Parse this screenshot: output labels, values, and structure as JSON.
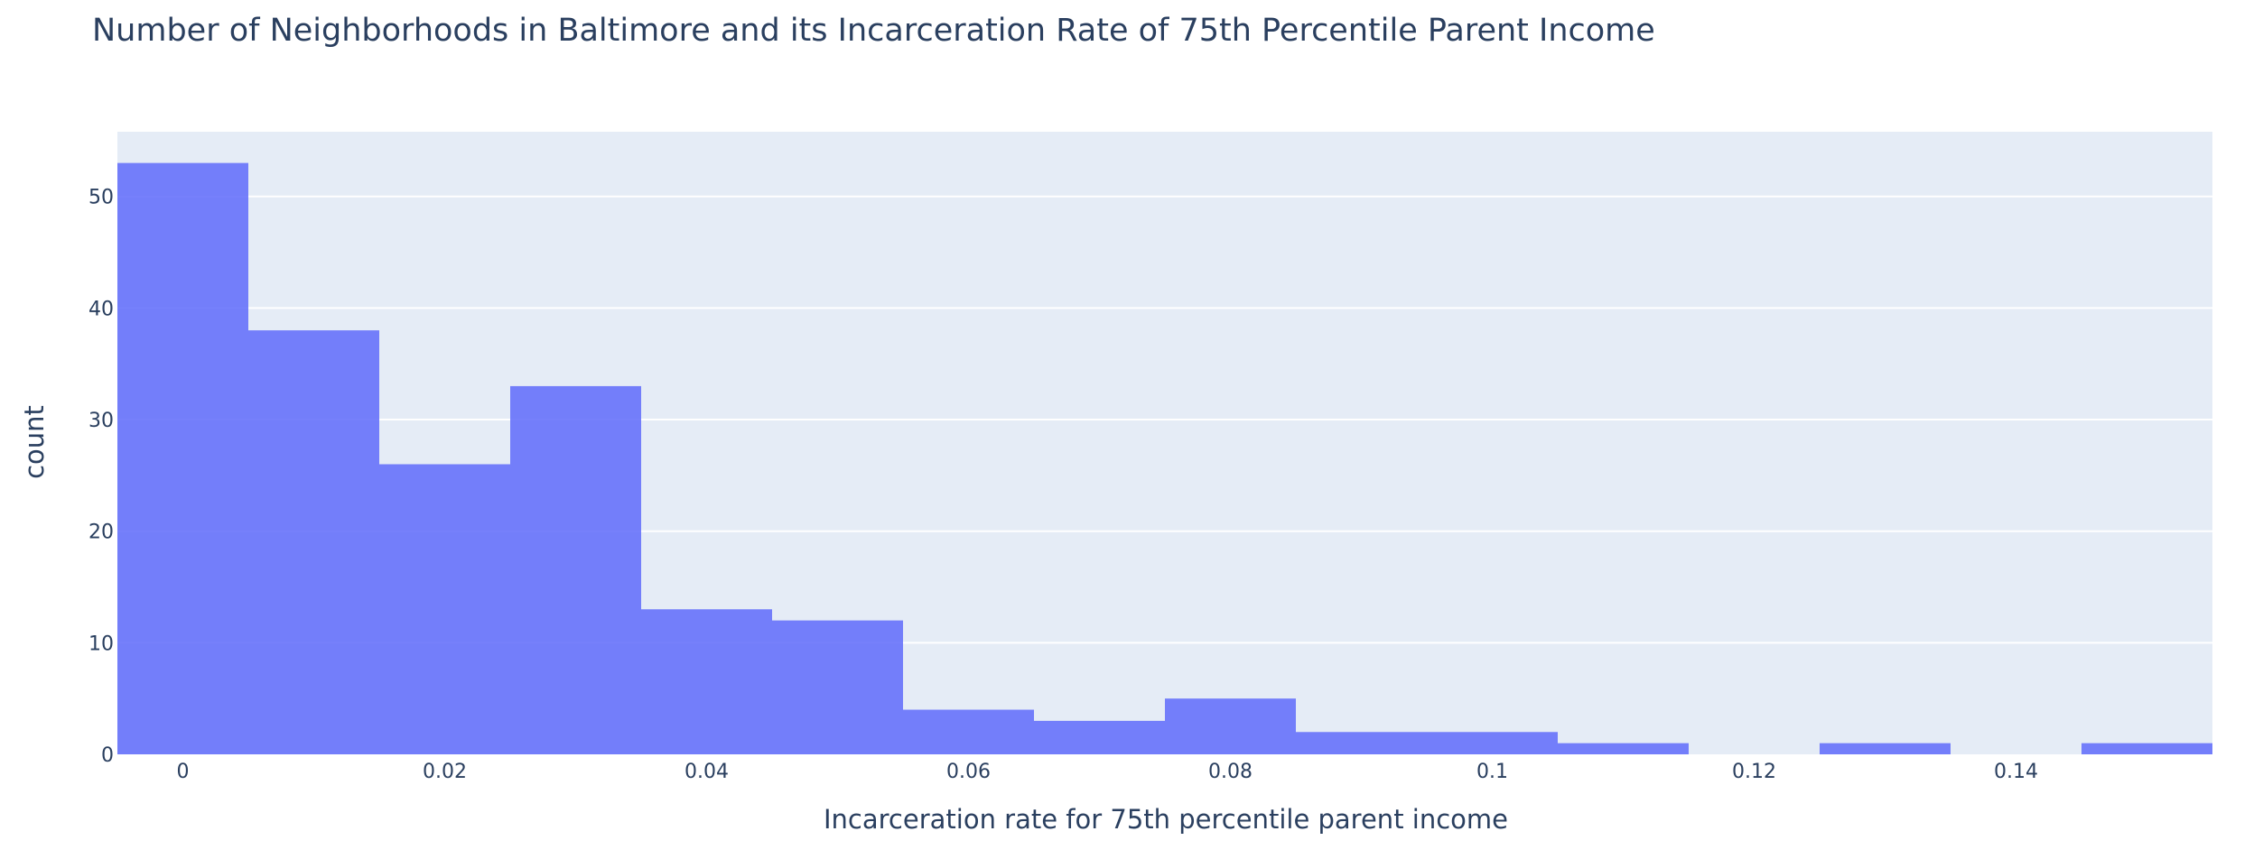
{
  "chart_data": {
    "type": "bar",
    "title": "Number of Neighborhoods in Baltimore and its Incarceration Rate of 75th Percentile Parent Income",
    "xlabel": "Incarceration rate for 75th percentile parent income",
    "ylabel": "count",
    "bin_width": 0.01,
    "bins": [
      {
        "start": -0.005,
        "end": 0.005,
        "count": 53
      },
      {
        "start": 0.005,
        "end": 0.015,
        "count": 38
      },
      {
        "start": 0.015,
        "end": 0.025,
        "count": 26
      },
      {
        "start": 0.025,
        "end": 0.035,
        "count": 33
      },
      {
        "start": 0.035,
        "end": 0.045,
        "count": 13
      },
      {
        "start": 0.045,
        "end": 0.055,
        "count": 12
      },
      {
        "start": 0.055,
        "end": 0.065,
        "count": 4
      },
      {
        "start": 0.065,
        "end": 0.075,
        "count": 3
      },
      {
        "start": 0.075,
        "end": 0.085,
        "count": 5
      },
      {
        "start": 0.085,
        "end": 0.095,
        "count": 2
      },
      {
        "start": 0.095,
        "end": 0.105,
        "count": 2
      },
      {
        "start": 0.105,
        "end": 0.115,
        "count": 1
      },
      {
        "start": 0.115,
        "end": 0.125,
        "count": 0
      },
      {
        "start": 0.125,
        "end": 0.135,
        "count": 1
      },
      {
        "start": 0.135,
        "end": 0.145,
        "count": 0
      },
      {
        "start": 0.145,
        "end": 0.155,
        "count": 1
      }
    ],
    "xlim": [
      -0.005,
      0.155
    ],
    "ylim": [
      0,
      55.8
    ],
    "xticks": [
      0,
      0.02,
      0.04,
      0.06,
      0.08,
      0.1,
      0.12,
      0.14
    ],
    "xtick_labels": [
      "0",
      "0.02",
      "0.04",
      "0.06",
      "0.08",
      "0.1",
      "0.12",
      "0.14"
    ],
    "yticks": [
      0,
      10,
      20,
      30,
      40,
      50
    ],
    "ytick_labels": [
      "0",
      "10",
      "20",
      "30",
      "40",
      "50"
    ],
    "grid": true,
    "legend": "none",
    "colors": {
      "bar": "#636efa",
      "plot_background": "#e5ecf6",
      "grid": "#ffffff",
      "text": "#2a3f5f"
    }
  }
}
